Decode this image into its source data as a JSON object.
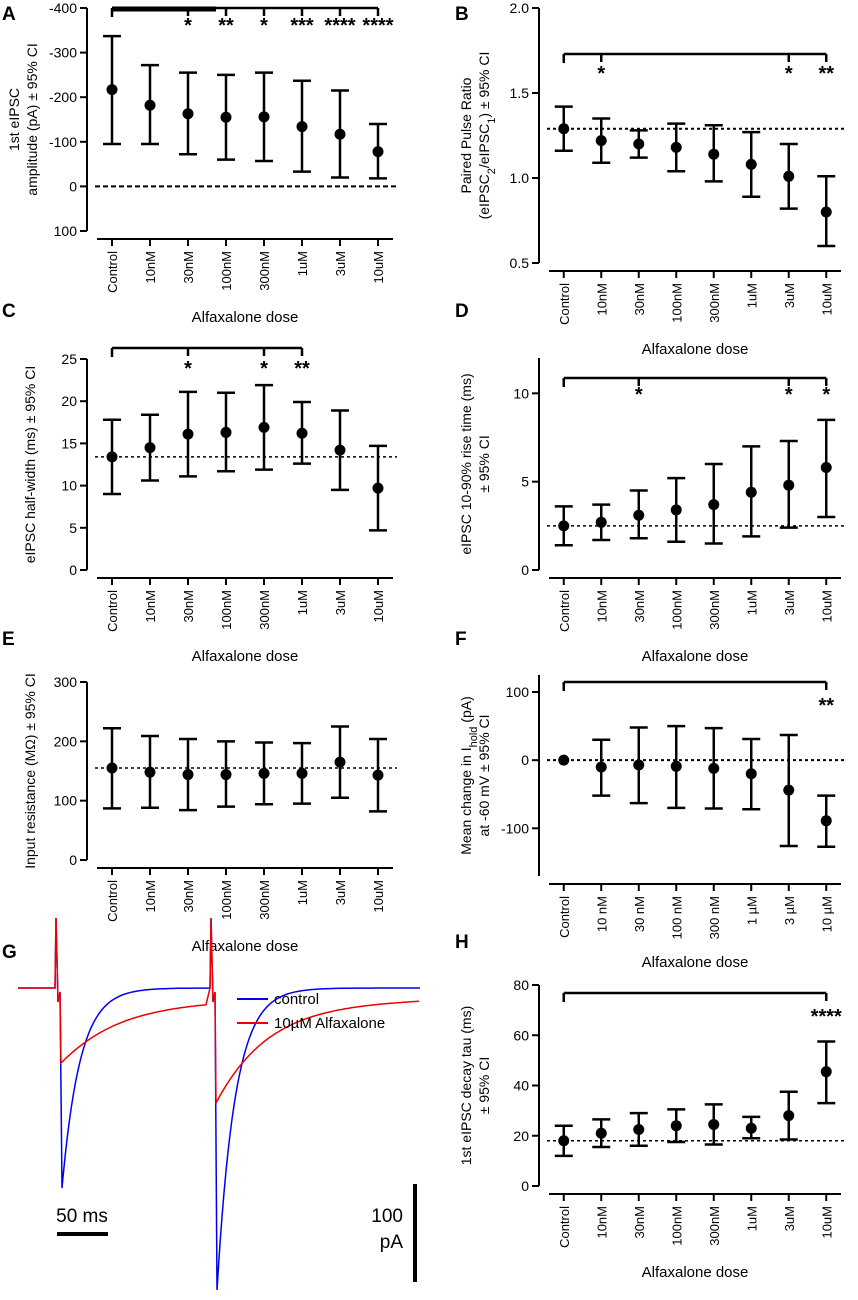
{
  "chart_data": [
    {
      "id": "A",
      "panel_label": "A",
      "type": "scatter",
      "ylabel_lines": [
        "1st eIPSC",
        "amplitude (pA) ± 95% CI"
      ],
      "xlabel": "Alfaxalone dose",
      "categories": [
        "Control",
        "10nM",
        "30nM",
        "100nM",
        "300nM",
        "1uM",
        "3uM",
        "10uM"
      ],
      "values": [
        -217,
        -182,
        -163,
        -155,
        -156,
        -134,
        -117,
        -78
      ],
      "ci_low": [
        -337,
        -272,
        -255,
        -250,
        -255,
        -237,
        -215,
        -140
      ],
      "ci_high": [
        -95,
        -95,
        -72,
        -60,
        -57,
        -33,
        -20,
        -18
      ],
      "ylim": [
        100,
        -400
      ],
      "ticks": [
        -400,
        -300,
        -200,
        -100,
        0,
        100
      ],
      "tick_labels": [
        "-400",
        "-300",
        "-200",
        "-100",
        "0",
        "100"
      ],
      "reference_line": 0,
      "significance_bracket": {
        "from": 0,
        "to": 7,
        "thick_to": 3
      },
      "significance": [
        "",
        "",
        "*",
        "**",
        "*",
        "***",
        "****",
        "****"
      ]
    },
    {
      "id": "B",
      "panel_label": "B",
      "type": "scatter",
      "ylabel_lines": [
        "Paired Pulse Ratio",
        "(eIPSC2/eIPSC1) ± 95% CI"
      ],
      "xlabel": "Alfaxalone dose",
      "categories": [
        "Control",
        "10nM",
        "30nM",
        "100nM",
        "300nM",
        "1uM",
        "3uM",
        "10uM"
      ],
      "values": [
        1.29,
        1.22,
        1.2,
        1.18,
        1.14,
        1.08,
        1.01,
        0.8
      ],
      "ci_low": [
        1.16,
        1.09,
        1.12,
        1.04,
        0.98,
        0.89,
        0.82,
        0.6
      ],
      "ci_high": [
        1.42,
        1.35,
        1.28,
        1.32,
        1.31,
        1.27,
        1.2,
        1.01
      ],
      "ylim": [
        0.5,
        2.0
      ],
      "ticks": [
        0.5,
        1.0,
        1.5,
        2.0
      ],
      "tick_labels": [
        "0.5",
        "1.0",
        "1.5",
        "2.0"
      ],
      "reference_line": 1.29,
      "significance_bracket": {
        "from": 0,
        "to": 7
      },
      "significance": [
        "",
        "*",
        "",
        "",
        "",
        "",
        "*",
        "**"
      ]
    },
    {
      "id": "C",
      "panel_label": "C",
      "type": "scatter",
      "ylabel_lines": [
        "eIPSC half-width (ms) ± 95% CI"
      ],
      "xlabel": "Alfaxalone dose",
      "categories": [
        "Control",
        "10nM",
        "30nM",
        "100nM",
        "300nM",
        "1uM",
        "3uM",
        "10uM"
      ],
      "values": [
        13.4,
        14.5,
        16.1,
        16.3,
        16.9,
        16.2,
        14.2,
        9.7
      ],
      "ci_low": [
        9.0,
        10.6,
        11.1,
        11.7,
        11.9,
        12.6,
        9.5,
        4.7
      ],
      "ci_high": [
        17.8,
        18.4,
        21.1,
        21.0,
        21.9,
        19.9,
        18.9,
        14.7
      ],
      "ylim": [
        0,
        25
      ],
      "ticks": [
        0,
        5,
        10,
        15,
        20,
        25
      ],
      "tick_labels": [
        "0",
        "5",
        "10",
        "15",
        "20",
        "25"
      ],
      "reference_line": 13.4,
      "significance_bracket": {
        "from": 0,
        "to": 5
      },
      "significance": [
        "",
        "",
        "*",
        "",
        "*",
        "**",
        "",
        ""
      ]
    },
    {
      "id": "D",
      "panel_label": "D",
      "type": "scatter",
      "ylabel_lines": [
        "eIPSC 10-90% rise time (ms)",
        "± 95% CI"
      ],
      "xlabel": "Alfaxalone dose",
      "categories": [
        "Control",
        "10nM",
        "30nM",
        "100nM",
        "300nM",
        "1uM",
        "3uM",
        "10uM"
      ],
      "values": [
        2.5,
        2.7,
        3.1,
        3.4,
        3.7,
        4.4,
        4.8,
        5.8
      ],
      "ci_low": [
        1.4,
        1.7,
        1.8,
        1.6,
        1.5,
        1.9,
        2.4,
        3.0
      ],
      "ci_high": [
        3.6,
        3.7,
        4.5,
        5.2,
        6.0,
        7.0,
        7.3,
        8.5
      ],
      "ylim": [
        0,
        12
      ],
      "ticks": [
        0,
        5,
        10
      ],
      "tick_labels": [
        "0",
        "5",
        "10"
      ],
      "reference_line": 2.5,
      "significance_bracket": {
        "from": 0,
        "to": 7
      },
      "significance": [
        "",
        "",
        "*",
        "",
        "",
        "",
        "*",
        "*"
      ]
    },
    {
      "id": "E",
      "panel_label": "E",
      "type": "scatter",
      "ylabel_lines": [
        "Input resistance (MΩ) ± 95% CI"
      ],
      "xlabel": "Alfaxalone dose",
      "categories": [
        "Control",
        "10nM",
        "30nM",
        "100nM",
        "300nM",
        "1uM",
        "3uM",
        "10uM"
      ],
      "values": [
        155,
        148,
        144,
        144,
        146,
        146,
        165,
        143
      ],
      "ci_low": [
        87,
        88,
        84,
        90,
        94,
        95,
        105,
        82
      ],
      "ci_high": [
        222,
        209,
        204,
        200,
        198,
        197,
        225,
        204
      ],
      "ylim": [
        0,
        300
      ],
      "ticks": [
        0,
        100,
        200,
        300
      ],
      "tick_labels": [
        "0",
        "100",
        "200",
        "300"
      ],
      "reference_line": 155,
      "significance": [
        "",
        "",
        "",
        "",
        "",
        "",
        "",
        ""
      ]
    },
    {
      "id": "F",
      "panel_label": "F",
      "type": "scatter",
      "ylabel_lines": [
        "Mean change in Ihold (pA)",
        "at -60 mV ± 95% CI"
      ],
      "xlabel": "Alfaxalone dose",
      "categories": [
        "Control",
        "10 nM",
        "30 nM",
        "100 nM",
        "300 nM",
        "1 µM",
        "3 µM",
        "10 µM"
      ],
      "values": [
        0,
        -10,
        -7,
        -9,
        -12,
        -20,
        -44,
        -89
      ],
      "ci_low": [
        0,
        -52,
        -63,
        -70,
        -71,
        -72,
        -126,
        -127
      ],
      "ci_high": [
        0,
        30,
        48,
        50,
        47,
        31,
        37,
        -52
      ],
      "ylim": [
        -170,
        125
      ],
      "ticks": [
        -100,
        0,
        100
      ],
      "tick_labels": [
        "-100",
        "0",
        "100"
      ],
      "reference_line": 0,
      "significance_bracket": {
        "from": 0,
        "to": 7
      },
      "significance": [
        "",
        "",
        "",
        "",
        "",
        "",
        "",
        "**"
      ]
    },
    {
      "id": "G",
      "panel_label": "G",
      "type": "line",
      "legend": [
        {
          "name": "control",
          "color": "#0000ee"
        },
        {
          "name": "10µM Alfaxalone",
          "color": "#ee0000"
        }
      ],
      "scale_bars": {
        "time": "50 ms",
        "current_value": "100",
        "current_unit": "pA"
      },
      "series": [
        {
          "name": "control",
          "color": "#0000ee",
          "baseline_pA": 0,
          "stim_ms": [
            0,
            155
          ],
          "peak1_pA": -200,
          "peak2_pA": -302,
          "tau_ms": 18,
          "late_offset_pA": 0
        },
        {
          "name": "10µM Alfaxalone",
          "color": "#ee0000",
          "baseline_pA": 0,
          "stim_ms": [
            0,
            155
          ],
          "peak1_pA": -75,
          "peak2_pA": -115,
          "tau_ms": 45,
          "late_offset_pA": -20
        }
      ]
    },
    {
      "id": "H",
      "panel_label": "H",
      "type": "scatter",
      "ylabel_lines": [
        "1st eIPSC decay tau (ms)",
        "± 95% CI"
      ],
      "xlabel": "Alfaxalone dose",
      "categories": [
        "Control",
        "10nM",
        "30nM",
        "100nM",
        "300nM",
        "1uM",
        "3uM",
        "10uM"
      ],
      "values": [
        18,
        21,
        22.5,
        24,
        24.5,
        23,
        28,
        45.5
      ],
      "ci_low": [
        12,
        15.5,
        16,
        17.5,
        16.5,
        19,
        18.5,
        33
      ],
      "ci_high": [
        24,
        26.5,
        29,
        30.5,
        32.5,
        27.5,
        37.5,
        57.5
      ],
      "ylim": [
        0,
        80
      ],
      "ticks": [
        0,
        20,
        40,
        60,
        80
      ],
      "tick_labels": [
        "0",
        "20",
        "40",
        "60",
        "80"
      ],
      "reference_line": 18,
      "significance_bracket": {
        "from": 0,
        "to": 7
      },
      "significance": [
        "",
        "",
        "",
        "",
        "",
        "",
        "",
        "****"
      ]
    }
  ]
}
